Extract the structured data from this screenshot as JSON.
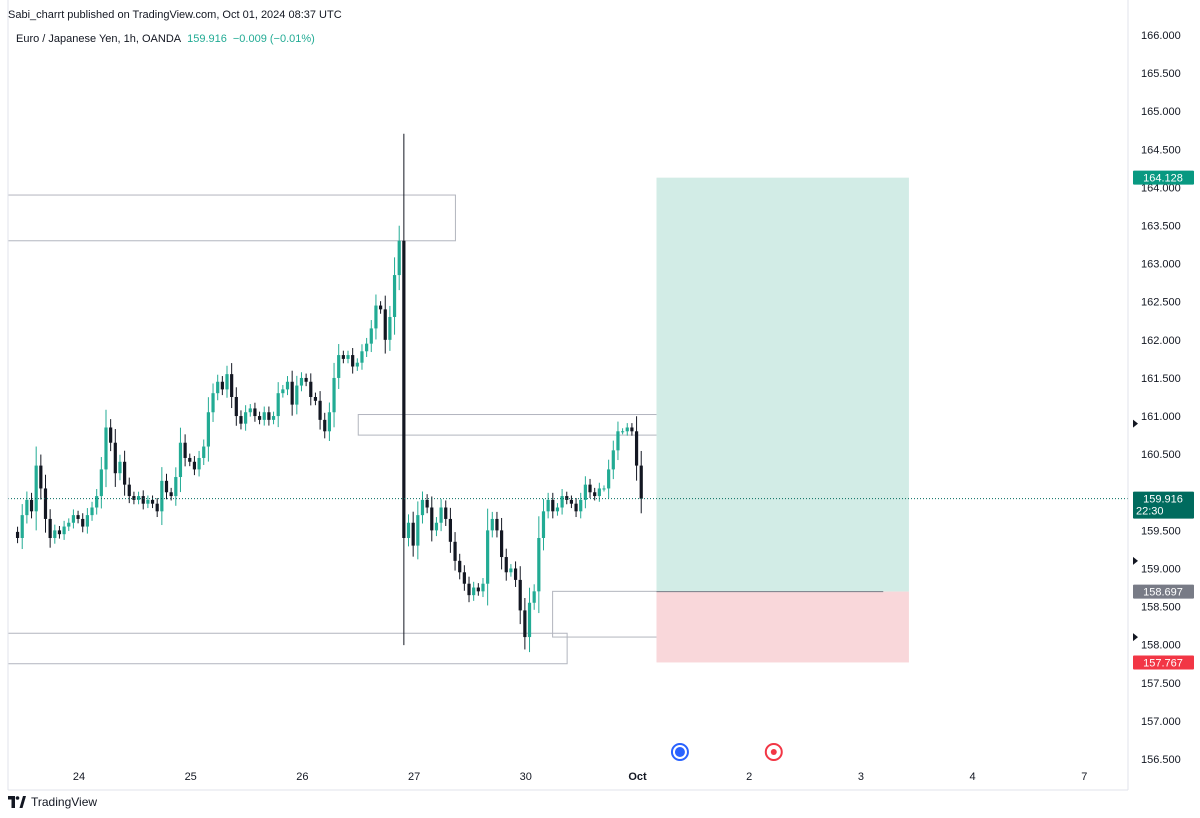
{
  "header": {
    "published_text": "Sabi_charrt published on TradingView.com, Oct 01, 2024 08:37 UTC"
  },
  "legend": {
    "symbol": "Euro / Japanese Yen, 1h, OANDA",
    "price": "159.916",
    "change": "−0.009 (−0.01%)"
  },
  "footer": {
    "brand": "TradingView",
    "logo_icon": "tradingview-logo-icon"
  },
  "colors": {
    "up": "#22ab94",
    "down": "#131722",
    "target_zone": "#d2ece6",
    "stop_zone": "#f9d7da",
    "target_badge": "#089981",
    "stop_badge": "#f23645",
    "entry_badge": "#787b86",
    "last_badge": "#006b5e"
  },
  "chart_data": {
    "type": "candlestick",
    "symbol": "EURJPY",
    "timeframe": "1h",
    "ylim": [
      156.3,
      166.2
    ],
    "y_ticks": [
      "166.000",
      "165.500",
      "165.000",
      "164.500",
      "164.000",
      "163.500",
      "163.000",
      "162.500",
      "162.000",
      "161.500",
      "161.000",
      "160.500",
      "159.500",
      "159.000",
      "158.500",
      "158.000",
      "157.500",
      "157.000",
      "156.500"
    ],
    "x_ticks": [
      {
        "label": "24",
        "day": 0,
        "bold": false
      },
      {
        "label": "25",
        "day": 1,
        "bold": false
      },
      {
        "label": "26",
        "day": 2,
        "bold": false
      },
      {
        "label": "27",
        "day": 3,
        "bold": false
      },
      {
        "label": "30",
        "day": 4,
        "bold": false
      },
      {
        "label": "Oct",
        "day": 5,
        "bold": true
      },
      {
        "label": "2",
        "day": 6,
        "bold": false
      },
      {
        "label": "3",
        "day": 7,
        "bold": false
      },
      {
        "label": "4",
        "day": 8,
        "bold": false
      },
      {
        "label": "7",
        "day": 9,
        "bold": false
      }
    ],
    "candles_start_day": -0.55,
    "candle_hours": 24,
    "closes": [
      159.4,
      159.7,
      159.9,
      159.75,
      160.35,
      160.05,
      159.65,
      159.4,
      159.5,
      159.45,
      159.55,
      159.6,
      159.7,
      159.65,
      159.55,
      159.7,
      159.8,
      159.95,
      160.3,
      160.85,
      160.65,
      160.25,
      160.4,
      160.1,
      159.95,
      159.9,
      159.95,
      159.85,
      159.9,
      159.85,
      159.75,
      160.15,
      160.0,
      159.95,
      160.2,
      160.65,
      160.45,
      160.4,
      160.3,
      160.45,
      160.6,
      161.05,
      161.3,
      161.45,
      161.35,
      161.55,
      161.25,
      161.0,
      160.9,
      161.05,
      161.1,
      161.0,
      160.95,
      161.05,
      160.95,
      161.0,
      161.3,
      161.35,
      161.45,
      161.15,
      161.4,
      161.5,
      161.45,
      161.25,
      161.2,
      160.95,
      160.8,
      161.05,
      161.5,
      161.8,
      161.75,
      161.8,
      161.65,
      161.7,
      161.85,
      161.95,
      162.15,
      162.45,
      162.4,
      162.0,
      162.3,
      162.85,
      163.3,
      159.4,
      159.6,
      159.3,
      159.7,
      159.9,
      159.8,
      159.5,
      159.6,
      159.8,
      159.65,
      159.35,
      159.1,
      158.95,
      158.8,
      158.65,
      158.75,
      158.7,
      158.8,
      159.5,
      159.65,
      159.5,
      159.15,
      158.95,
      159.0,
      158.85,
      158.45,
      158.1,
      158.55,
      158.7,
      159.4,
      159.75,
      159.9,
      159.75,
      159.8,
      159.95,
      159.9,
      159.85,
      159.75,
      159.9,
      160.1,
      160.0,
      159.95,
      160.05,
      160.05,
      160.3,
      160.55,
      160.8,
      160.8,
      160.85,
      160.8,
      160.35,
      159.916
    ],
    "key_levels": {
      "target": 164.128,
      "entry": 158.697,
      "stop": 157.767,
      "last": 159.916
    },
    "position_badge_labels": {
      "target": "164.128",
      "entry": "158.697",
      "stop": "157.767",
      "last": "159.916",
      "countdown": "22:30"
    },
    "position": {
      "type": "long",
      "start_day": 5.17,
      "end_day": 7.43,
      "entry_box_end_day": 7.2
    },
    "zones": [
      {
        "name": "supply-zone-upper",
        "top": 163.9,
        "bottom": 163.3,
        "start_day": -0.65,
        "end_day": 3.37
      },
      {
        "name": "mid-zone",
        "top": 161.02,
        "bottom": 160.75,
        "start_day": 2.5,
        "end_day": 5.34
      },
      {
        "name": "entry-range-box",
        "top": 158.7,
        "bottom": 158.1,
        "start_day": 4.24,
        "end_day": 7.2
      },
      {
        "name": "demand-zone-lower",
        "top": 158.15,
        "bottom": 157.75,
        "start_day": -0.65,
        "end_day": 4.37
      }
    ],
    "markers": [
      {
        "type": "event-flag",
        "day": 5.38,
        "color": "#2962ff",
        "icon": "eu-flag-icon"
      },
      {
        "type": "event-dot",
        "day": 6.22,
        "color": "#f23645",
        "icon": "alert-dot-icon"
      }
    ]
  }
}
